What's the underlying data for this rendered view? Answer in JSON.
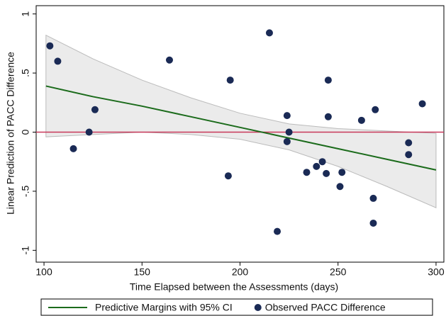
{
  "chart_data": {
    "type": "scatter",
    "x_label": "Time Elapsed between the Assessments (days)",
    "y_label": "Linear Prediction of PACC Difference",
    "xlim": [
      96,
      304
    ],
    "ylim": [
      -1.1,
      1.07
    ],
    "xticks": [
      100,
      150,
      200,
      250,
      300
    ],
    "yticks": [
      1,
      {
        "value": 0.5,
        "label": ".5"
      },
      0,
      {
        "value": -0.5,
        "label": "-.5"
      },
      -1
    ],
    "reference_line": 0,
    "reference_color": "#c8385a",
    "band_color": "#ebebeb",
    "series": [
      {
        "name": "Predictive Margins with 95% CI",
        "type": "line",
        "color": "#1b6b1b",
        "x": [
          101,
          125,
          150,
          175,
          200,
          225,
          250,
          275,
          300
        ],
        "values": [
          0.39,
          0.3,
          0.22,
          0.13,
          0.04,
          -0.05,
          -0.14,
          -0.23,
          -0.32
        ],
        "ci_upper": [
          0.82,
          0.62,
          0.44,
          0.29,
          0.16,
          0.07,
          0.03,
          0.01,
          -0.01
        ],
        "ci_lower": [
          -0.04,
          -0.02,
          0.0,
          -0.02,
          -0.06,
          -0.15,
          -0.29,
          -0.46,
          -0.64
        ]
      },
      {
        "name": "Observed PACC Difference",
        "type": "scatter",
        "color": "#1a2a55",
        "x": [
          103,
          107,
          115,
          123,
          126,
          164,
          194,
          195,
          215,
          219,
          224,
          224,
          225,
          234,
          239,
          242,
          244,
          245,
          245,
          251,
          252,
          262,
          268,
          268,
          269,
          286,
          286,
          293
        ],
        "values": [
          0.73,
          0.6,
          -0.14,
          0,
          0.19,
          0.61,
          -0.37,
          0.44,
          0.84,
          -0.84,
          0.14,
          -0.08,
          0,
          -0.34,
          -0.29,
          -0.25,
          -0.35,
          0.44,
          0.13,
          -0.46,
          -0.34,
          0.1,
          -0.56,
          -0.77,
          0.19,
          -0.09,
          -0.19,
          0.24
        ]
      }
    ]
  }
}
